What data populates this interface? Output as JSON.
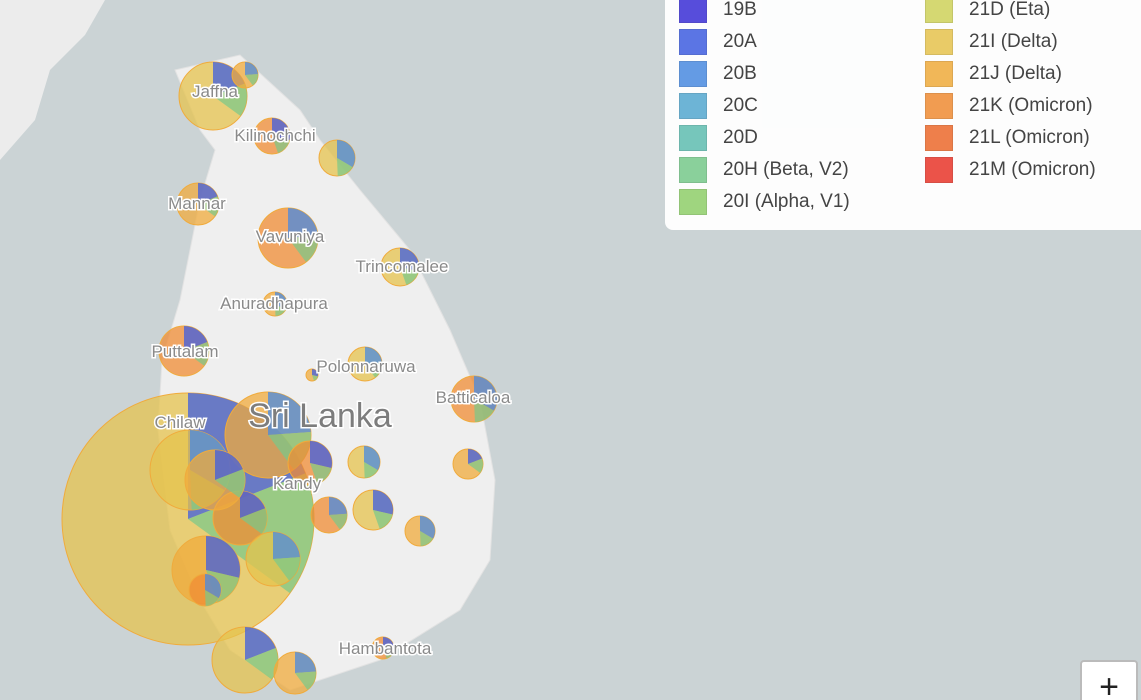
{
  "map": {
    "places": [
      "Jaffna",
      "Kilinochchi",
      "Mannar",
      "Vavuniya",
      "Trincomalee",
      "Anuradhapura",
      "Puttalam",
      "Polonnaruwa",
      "Batticaloa",
      "Chilaw",
      "Kandy",
      "Hambantota"
    ],
    "country": "Sri Lanka"
  },
  "legend": [
    {
      "name": "19B",
      "color": "#3b2fd6"
    },
    {
      "name": "20A",
      "color": "#3f5ee0"
    },
    {
      "name": "20B",
      "color": "#4a8ae0"
    },
    {
      "name": "20C",
      "color": "#55a8d0"
    },
    {
      "name": "20D",
      "color": "#5fbdb0"
    },
    {
      "name": "20H (Beta, V2)",
      "color": "#77c98a"
    },
    {
      "name": "20I (Alpha, V1)",
      "color": "#8fcf6a"
    },
    {
      "name": "21D (Eta)",
      "color": "#cfd25a"
    },
    {
      "name": "21I (Delta)",
      "color": "#e6c34d"
    },
    {
      "name": "21J (Delta)",
      "color": "#f0ab3c"
    },
    {
      "name": "21K (Omicron)",
      "color": "#f08c34"
    },
    {
      "name": "21L (Omicron)",
      "color": "#ec6a2c"
    },
    {
      "name": "21M (Omicron)",
      "color": "#e8362a"
    }
  ],
  "zoom_in": "+"
}
